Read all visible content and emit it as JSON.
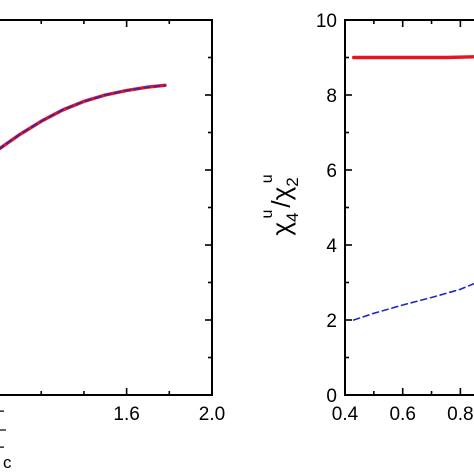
{
  "chart_data": [
    {
      "type": "line",
      "title": "",
      "xlabel": "T/T_c",
      "xlabel_parts": {
        "num": "T",
        "den": "T",
        "den_sub": "c"
      },
      "ylabel": "",
      "xlim": [
        0.96,
        2.0
      ],
      "ylim": [
        0,
        10
      ],
      "x_ticks": [
        1.6,
        2.0
      ],
      "x_tick_labels": [
        "1.6",
        "2.0"
      ],
      "y_ticks": [
        2,
        4,
        6,
        8
      ],
      "grid": false,
      "legend": "none",
      "series": [
        {
          "color": "#e8141e",
          "style": "solid",
          "x": [
            1.0,
            1.05,
            1.1,
            1.2,
            1.3,
            1.4,
            1.5,
            1.6,
            1.7,
            1.78
          ],
          "y": [
            6.55,
            6.75,
            6.95,
            7.3,
            7.6,
            7.83,
            8.0,
            8.12,
            8.21,
            8.26
          ]
        },
        {
          "color": "#1f28c9",
          "style": "dashed",
          "x": [
            1.0,
            1.05,
            1.1,
            1.2,
            1.3,
            1.4,
            1.5,
            1.6,
            1.7,
            1.78
          ],
          "y": [
            6.55,
            6.75,
            6.95,
            7.3,
            7.6,
            7.83,
            8.0,
            8.12,
            8.21,
            8.26
          ]
        }
      ]
    },
    {
      "type": "line",
      "title": "",
      "xlabel": "",
      "ylabel": "χ4u/χ2u",
      "ylabel_parts": {
        "num": "χ",
        "num_sub": "4",
        "num_sup": "u",
        "den": "χ",
        "den_sub": "2",
        "den_sup": "u"
      },
      "xlim": [
        0.4,
        0.92
      ],
      "ylim": [
        0,
        10
      ],
      "x_ticks": [
        0.4,
        0.6,
        0.8
      ],
      "x_tick_labels": [
        "0.4",
        "0.6",
        "0.8"
      ],
      "y_ticks": [
        0,
        2,
        4,
        6,
        8,
        10
      ],
      "y_tick_labels": [
        "0",
        "2",
        "4",
        "6",
        "8",
        "10"
      ],
      "grid": false,
      "legend": "none",
      "series": [
        {
          "color": "#e8141e",
          "style": "solid",
          "x": [
            0.43,
            0.55,
            0.65,
            0.75,
            0.85,
            0.92
          ],
          "y": [
            9.0,
            9.0,
            9.0,
            9.0,
            9.02,
            9.05
          ]
        },
        {
          "color": "#1f28c9",
          "style": "dashed",
          "x": [
            0.43,
            0.5,
            0.6,
            0.7,
            0.8,
            0.85,
            0.9,
            0.92
          ],
          "y": [
            2.0,
            2.18,
            2.4,
            2.6,
            2.82,
            2.98,
            3.2,
            3.35
          ]
        }
      ]
    }
  ]
}
